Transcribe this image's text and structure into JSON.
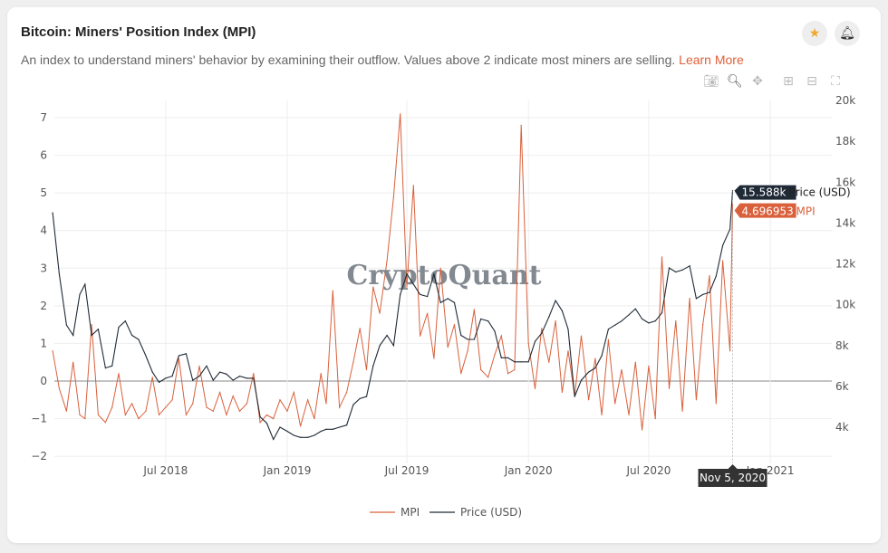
{
  "header": {
    "title": "Bitcoin: Miners' Position Index (MPI)",
    "description": "An index to understand miners' behavior by examining their outflow. Values above 2 indicate most miners are selling.",
    "learn_more": "Learn More",
    "favorite_icon": "star-icon",
    "alert_icon": "bell-icon"
  },
  "toolbar": {
    "icons": [
      "camera-icon",
      "zoom-icon",
      "pan-icon",
      "zoom-in-icon",
      "zoom-out-icon",
      "autoscale-icon"
    ]
  },
  "watermark": "CryptoQuant",
  "tooltip": {
    "date": "Nov 5, 2020",
    "price": "15.588k",
    "price_label": "Price (USD)",
    "mpi": "4.696953",
    "mpi_label": "MPI"
  },
  "colors": {
    "mpi": "#d9603b",
    "price": "#1f2a36",
    "accent": "#e0603a",
    "star": "#f0a830"
  },
  "chart_data": {
    "type": "line",
    "title": "Bitcoin: Miners' Position Index (MPI)",
    "x_ticks": [
      "Jul 2018",
      "Jan 2019",
      "Jul 2019",
      "Jan 2020",
      "Jul 2020",
      "Jan 2021"
    ],
    "y_left_ticks": [
      "7",
      "6",
      "5",
      "4",
      "3",
      "2",
      "1",
      "0",
      "−1",
      "−2"
    ],
    "y_right_ticks": [
      "20k",
      "18k",
      "16k",
      "14k",
      "12k",
      "10k",
      "8k",
      "6k",
      "4k"
    ],
    "y_left_range": [
      -2,
      7
    ],
    "y_right_range": [
      4000,
      20000
    ],
    "grid": true,
    "legend_placement": "bottom",
    "legend": [
      "MPI",
      "Price (USD)"
    ],
    "x": [
      "2018-01-11",
      "2018-01-21",
      "2018-02-01",
      "2018-02-11",
      "2018-02-21",
      "2018-03-01",
      "2018-03-11",
      "2018-03-21",
      "2018-04-01",
      "2018-04-11",
      "2018-04-21",
      "2018-05-01",
      "2018-05-11",
      "2018-05-21",
      "2018-06-01",
      "2018-06-11",
      "2018-06-21",
      "2018-07-01",
      "2018-07-11",
      "2018-07-21",
      "2018-08-01",
      "2018-08-11",
      "2018-08-21",
      "2018-09-01",
      "2018-09-11",
      "2018-09-21",
      "2018-10-01",
      "2018-10-11",
      "2018-10-21",
      "2018-11-01",
      "2018-11-11",
      "2018-11-21",
      "2018-12-01",
      "2018-12-11",
      "2018-12-21",
      "2019-01-01",
      "2019-01-11",
      "2019-01-21",
      "2019-02-01",
      "2019-02-11",
      "2019-02-21",
      "2019-03-01",
      "2019-03-11",
      "2019-03-21",
      "2019-04-01",
      "2019-04-11",
      "2019-04-21",
      "2019-05-01",
      "2019-05-11",
      "2019-05-21",
      "2019-06-01",
      "2019-06-11",
      "2019-06-21",
      "2019-07-01",
      "2019-07-11",
      "2019-07-21",
      "2019-08-01",
      "2019-08-11",
      "2019-08-21",
      "2019-09-01",
      "2019-09-11",
      "2019-09-21",
      "2019-10-01",
      "2019-10-11",
      "2019-10-21",
      "2019-11-01",
      "2019-11-11",
      "2019-11-21",
      "2019-12-01",
      "2019-12-11",
      "2019-12-21",
      "2020-01-01",
      "2020-01-11",
      "2020-01-21",
      "2020-02-01",
      "2020-02-11",
      "2020-02-21",
      "2020-03-01",
      "2020-03-11",
      "2020-03-21",
      "2020-04-01",
      "2020-04-11",
      "2020-04-21",
      "2020-05-01",
      "2020-05-11",
      "2020-05-21",
      "2020-06-01",
      "2020-06-11",
      "2020-06-21",
      "2020-07-01",
      "2020-07-11",
      "2020-07-21",
      "2020-08-01",
      "2020-08-11",
      "2020-08-21",
      "2020-09-01",
      "2020-09-11",
      "2020-09-21",
      "2020-10-01",
      "2020-10-11",
      "2020-10-21",
      "2020-11-01",
      "2020-11-05"
    ],
    "series": [
      {
        "name": "MPI",
        "axis": "left",
        "values": [
          0.8,
          -0.2,
          -0.8,
          0.5,
          -0.9,
          -1.0,
          1.5,
          -0.9,
          -1.1,
          -0.7,
          0.2,
          -0.9,
          -0.6,
          -1.0,
          -0.8,
          0.1,
          -0.9,
          -0.7,
          -0.5,
          0.6,
          -0.9,
          -0.6,
          0.4,
          -0.7,
          -0.8,
          -0.3,
          -0.9,
          -0.4,
          -0.8,
          -0.6,
          0.2,
          -1.1,
          -0.9,
          -1.0,
          -0.5,
          -0.8,
          -0.3,
          -1.2,
          -0.5,
          -1.0,
          0.2,
          -0.6,
          2.4,
          -0.7,
          -0.3,
          0.5,
          1.4,
          0.3,
          2.5,
          1.8,
          3.2,
          4.9,
          7.1,
          2.5,
          5.2,
          1.2,
          1.8,
          0.6,
          3.0,
          0.9,
          1.5,
          0.2,
          0.8,
          1.9,
          0.3,
          0.1,
          0.7,
          1.2,
          0.2,
          0.3,
          6.8,
          1.0,
          -0.2,
          1.4,
          0.5,
          1.6,
          -0.3,
          0.8,
          -0.4,
          1.2,
          -0.5,
          0.6,
          -0.9,
          1.1,
          -0.6,
          0.3,
          -0.9,
          0.5,
          -1.3,
          0.4,
          -1.0,
          3.3,
          -0.2,
          1.6,
          -0.8,
          2.2,
          -0.5,
          1.5,
          2.8,
          -0.6,
          3.2,
          0.8,
          4.696953
        ]
      },
      {
        "name": "Price (USD)",
        "axis": "right",
        "values": [
          14500,
          11500,
          9000,
          8500,
          10500,
          11000,
          8500,
          8800,
          6900,
          7000,
          8900,
          9200,
          8500,
          8300,
          7500,
          6700,
          6200,
          6400,
          6500,
          7500,
          7600,
          6300,
          6500,
          7000,
          6300,
          6700,
          6600,
          6300,
          6500,
          6400,
          6400,
          4500,
          4200,
          3400,
          4000,
          3800,
          3600,
          3500,
          3500,
          3600,
          3800,
          3900,
          3900,
          4000,
          4100,
          5100,
          5400,
          5500,
          7000,
          8000,
          8500,
          8000,
          10500,
          11500,
          11000,
          10500,
          10400,
          11500,
          10100,
          10300,
          10100,
          8500,
          8300,
          8300,
          9300,
          9200,
          8700,
          7400,
          7400,
          7200,
          7200,
          7200,
          8200,
          8600,
          9400,
          10200,
          9700,
          8800,
          5500,
          6300,
          6700,
          6900,
          7500,
          8800,
          9000,
          9200,
          9500,
          9800,
          9300,
          9100,
          9200,
          9600,
          11800,
          11600,
          11700,
          11900,
          10300,
          10500,
          10600,
          11400,
          12900,
          13700,
          15588
        ]
      }
    ]
  }
}
